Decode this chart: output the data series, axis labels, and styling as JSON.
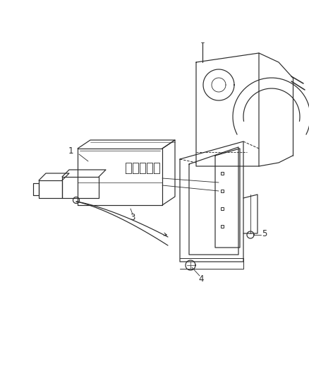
{
  "background_color": "#ffffff",
  "line_color": "#2a2a2a",
  "fig_width": 4.39,
  "fig_height": 5.33,
  "dpi": 100,
  "label_fontsize": 8.5
}
